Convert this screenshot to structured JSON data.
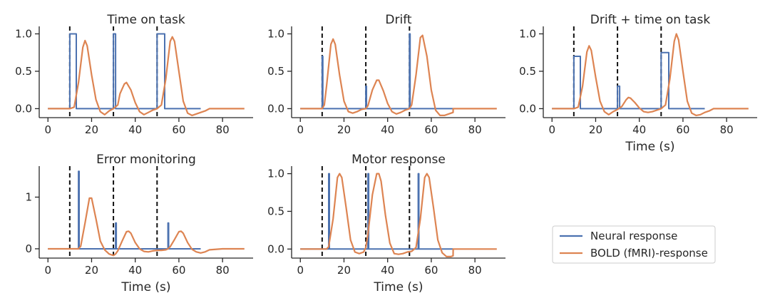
{
  "colors": {
    "neural": "#4c72b0",
    "bold": "#dd8452",
    "event": "#111111",
    "axis": "#262626"
  },
  "legend": {
    "placement": "bottom-right",
    "items": [
      {
        "label": "Neural response",
        "series": "neural"
      },
      {
        "label": "BOLD (fMRI)-response",
        "series": "bold"
      }
    ]
  },
  "chart_data": [
    {
      "type": "line",
      "title": "Time on task",
      "xlabel": "",
      "ylabel": "",
      "xlim": [
        -4,
        94
      ],
      "ylim": [
        -0.12,
        1.1
      ],
      "xticks": [
        0,
        20,
        40,
        60,
        80
      ],
      "xtick_labels": [
        "0",
        "20",
        "40",
        "60",
        "80"
      ],
      "yticks": [
        0,
        0.5,
        1.0
      ],
      "ytick_labels": [
        "0.0",
        "0.5",
        "1.0"
      ],
      "grid": false,
      "event_lines_x": [
        10,
        30,
        50
      ],
      "series": [
        {
          "name": "Neural response",
          "key": "neural",
          "step": true,
          "x": [
            0,
            10,
            10,
            13,
            13,
            30,
            30,
            31,
            31,
            50,
            50,
            53.5,
            53.5,
            70
          ],
          "y": [
            0,
            0,
            1.0,
            1.0,
            0,
            0,
            1.0,
            1.0,
            0,
            0,
            1.0,
            1.0,
            0,
            0
          ]
        },
        {
          "name": "BOLD (fMRI)-response",
          "key": "bold",
          "x": [
            0,
            10,
            12,
            14,
            16,
            17,
            18,
            20,
            22,
            24,
            26,
            28,
            30,
            32,
            33,
            35,
            36,
            38,
            40,
            42,
            44,
            46,
            48,
            50,
            52,
            54,
            56,
            57,
            58,
            60,
            62,
            64,
            66,
            68,
            70,
            72,
            74,
            80,
            90
          ],
          "y": [
            0,
            0,
            0.02,
            0.35,
            0.82,
            0.91,
            0.84,
            0.45,
            0.12,
            -0.04,
            -0.08,
            -0.03,
            0,
            0.05,
            0.2,
            0.33,
            0.35,
            0.25,
            0.08,
            -0.04,
            -0.08,
            -0.05,
            -0.02,
            0,
            0.05,
            0.4,
            0.9,
            0.96,
            0.9,
            0.5,
            0.1,
            -0.06,
            -0.09,
            -0.07,
            -0.05,
            -0.03,
            0,
            0,
            0
          ]
        }
      ]
    },
    {
      "type": "line",
      "title": "Drift",
      "xlabel": "",
      "ylabel": "",
      "xlim": [
        -4,
        94
      ],
      "ylim": [
        -0.12,
        1.1
      ],
      "xticks": [
        0,
        20,
        40,
        60,
        80
      ],
      "xtick_labels": [
        "0",
        "20",
        "40",
        "60",
        "80"
      ],
      "yticks": [
        0,
        0.5,
        1.0
      ],
      "ytick_labels": [
        "0.0",
        "0.5",
        "1.0"
      ],
      "grid": false,
      "event_lines_x": [
        10,
        30,
        50
      ],
      "series": [
        {
          "name": "Neural response",
          "key": "neural",
          "step": true,
          "x": [
            0,
            10,
            10,
            10.3,
            10.3,
            30,
            30,
            30.3,
            30.3,
            50,
            50,
            50.3,
            50.3,
            70
          ],
          "y": [
            0,
            0,
            0.7,
            0.7,
            0,
            0,
            0.3,
            0.3,
            0,
            0,
            1.0,
            1.0,
            0,
            0
          ]
        },
        {
          "name": "BOLD (fMRI)-response",
          "key": "bold",
          "x": [
            0,
            10,
            11,
            12,
            14,
            15,
            16,
            18,
            20,
            22,
            24,
            26,
            28,
            30,
            31,
            33,
            35,
            36,
            38,
            40,
            42,
            44,
            46,
            48,
            50,
            51,
            53,
            55,
            56,
            58,
            60,
            62,
            64,
            66,
            68,
            70,
            70.01,
            80,
            90
          ],
          "y": [
            0,
            0,
            0.05,
            0.3,
            0.86,
            0.93,
            0.86,
            0.45,
            0.1,
            -0.04,
            -0.06,
            -0.04,
            -0.01,
            0,
            0.04,
            0.25,
            0.38,
            0.38,
            0.24,
            0.07,
            -0.04,
            -0.07,
            -0.05,
            -0.02,
            0,
            0.05,
            0.45,
            0.95,
            0.98,
            0.7,
            0.25,
            -0.02,
            -0.09,
            -0.09,
            -0.07,
            -0.05,
            0,
            0,
            0
          ]
        }
      ]
    },
    {
      "type": "line",
      "title": "Drift + time on task",
      "xlabel": "Time (s)",
      "ylabel": "",
      "xlim": [
        -4,
        94
      ],
      "ylim": [
        -0.12,
        1.1
      ],
      "xticks": [
        0,
        20,
        40,
        60,
        80
      ],
      "xtick_labels": [
        "0",
        "20",
        "40",
        "60",
        "80"
      ],
      "yticks": [
        0,
        0.5,
        1.0
      ],
      "ytick_labels": [
        "0.0",
        "0.5",
        "1.0"
      ],
      "grid": false,
      "event_lines_x": [
        10,
        30,
        50
      ],
      "series": [
        {
          "name": "Neural response",
          "key": "neural",
          "step": true,
          "x": [
            0,
            10,
            10,
            13,
            13,
            30,
            30,
            31,
            31,
            50,
            50,
            53.5,
            53.5,
            70
          ],
          "y": [
            0,
            0,
            0.7,
            0.7,
            0,
            0,
            0.3,
            0.3,
            0,
            0,
            0.75,
            0.75,
            0,
            0
          ]
        },
        {
          "name": "BOLD (fMRI)-response",
          "key": "bold",
          "x": [
            0,
            10,
            12,
            14,
            16,
            17,
            18,
            20,
            22,
            24,
            26,
            28,
            30,
            32,
            34,
            35,
            36,
            38,
            40,
            42,
            44,
            46,
            48,
            50,
            52,
            54,
            56,
            57,
            58,
            60,
            62,
            64,
            66,
            68,
            70,
            72,
            74,
            80,
            90
          ],
          "y": [
            0,
            0,
            0.02,
            0.3,
            0.76,
            0.84,
            0.78,
            0.42,
            0.1,
            -0.04,
            -0.08,
            -0.04,
            -0.01,
            0.03,
            0.12,
            0.15,
            0.14,
            0.08,
            0.01,
            -0.04,
            -0.05,
            -0.04,
            -0.02,
            0,
            0.05,
            0.4,
            0.9,
            1.0,
            0.92,
            0.5,
            0.1,
            -0.06,
            -0.09,
            -0.08,
            -0.05,
            -0.03,
            0,
            0,
            0
          ]
        }
      ]
    },
    {
      "type": "line",
      "title": "Error monitoring",
      "xlabel": "Time (s)",
      "ylabel": "",
      "xlim": [
        -4,
        94
      ],
      "ylim": [
        -0.18,
        1.6
      ],
      "xticks": [
        0,
        20,
        40,
        60,
        80
      ],
      "xtick_labels": [
        "0",
        "20",
        "40",
        "60",
        "80"
      ],
      "yticks": [
        0,
        1
      ],
      "ytick_labels": [
        "0",
        "1"
      ],
      "grid": false,
      "event_lines_x": [
        10,
        30,
        50
      ],
      "series": [
        {
          "name": "Neural response",
          "key": "neural",
          "step": true,
          "x": [
            0,
            14,
            14,
            14.3,
            14.3,
            31,
            31,
            31.3,
            31.3,
            55,
            55,
            55.3,
            55.3,
            70
          ],
          "y": [
            0,
            0,
            1.5,
            1.5,
            0,
            0,
            0.5,
            0.5,
            0,
            0,
            0.5,
            0.5,
            0,
            0
          ]
        },
        {
          "name": "BOLD (fMRI)-response",
          "key": "bold",
          "x": [
            0,
            14,
            15,
            17,
            19,
            20,
            22,
            24,
            26,
            28,
            30,
            31,
            32,
            34,
            36,
            37,
            38,
            40,
            42,
            44,
            46,
            48,
            50,
            52,
            54,
            55,
            56,
            58,
            60,
            61,
            62,
            64,
            66,
            68,
            70,
            72,
            74,
            80,
            90
          ],
          "y": [
            0,
            0,
            0.05,
            0.5,
            0.98,
            0.98,
            0.58,
            0.15,
            -0.02,
            -0.1,
            -0.13,
            -0.1,
            -0.04,
            0.15,
            0.33,
            0.34,
            0.3,
            0.12,
            0,
            -0.05,
            -0.06,
            -0.04,
            -0.03,
            -0.03,
            -0.02,
            0,
            0.04,
            0.18,
            0.33,
            0.34,
            0.3,
            0.12,
            -0.01,
            -0.06,
            -0.08,
            -0.06,
            -0.02,
            0,
            0
          ]
        }
      ]
    },
    {
      "type": "line",
      "title": "Motor response",
      "xlabel": "Time (s)",
      "ylabel": "",
      "xlim": [
        -4,
        94
      ],
      "ylim": [
        -0.12,
        1.1
      ],
      "xticks": [
        0,
        20,
        40,
        60,
        80
      ],
      "xtick_labels": [
        "0",
        "20",
        "40",
        "60",
        "80"
      ],
      "yticks": [
        0,
        0.5,
        1.0
      ],
      "ytick_labels": [
        "0.0",
        "0.5",
        "1.0"
      ],
      "grid": false,
      "event_lines_x": [
        10,
        30,
        50
      ],
      "series": [
        {
          "name": "Neural response",
          "key": "neural",
          "step": true,
          "x": [
            0,
            13,
            13,
            13.3,
            13.3,
            31,
            31,
            31.3,
            31.3,
            54,
            54,
            54.3,
            54.3,
            70
          ],
          "y": [
            0,
            0,
            1.0,
            1.0,
            0,
            0,
            1.0,
            1.0,
            0,
            0,
            1.0,
            1.0,
            0,
            0
          ]
        },
        {
          "name": "BOLD (fMRI)-response",
          "key": "bold",
          "x": [
            0,
            12,
            13,
            15,
            17,
            18,
            19,
            21,
            23,
            25,
            27,
            29,
            30,
            31,
            33,
            35,
            36,
            37,
            39,
            41,
            43,
            45,
            47,
            49,
            51,
            53,
            55,
            57,
            58,
            59,
            61,
            63,
            65,
            67,
            69,
            70,
            70.01,
            74,
            80,
            90
          ],
          "y": [
            0,
            0,
            0.03,
            0.4,
            0.95,
            1.0,
            0.95,
            0.55,
            0.12,
            -0.04,
            -0.06,
            -0.04,
            0.02,
            0.2,
            0.72,
            1.0,
            1.0,
            0.9,
            0.45,
            0.08,
            -0.06,
            -0.07,
            -0.06,
            -0.04,
            -0.03,
            0.02,
            0.4,
            0.95,
            1.0,
            0.95,
            0.55,
            0.12,
            -0.05,
            -0.1,
            -0.1,
            -0.09,
            0,
            0,
            0,
            0
          ]
        }
      ]
    }
  ]
}
